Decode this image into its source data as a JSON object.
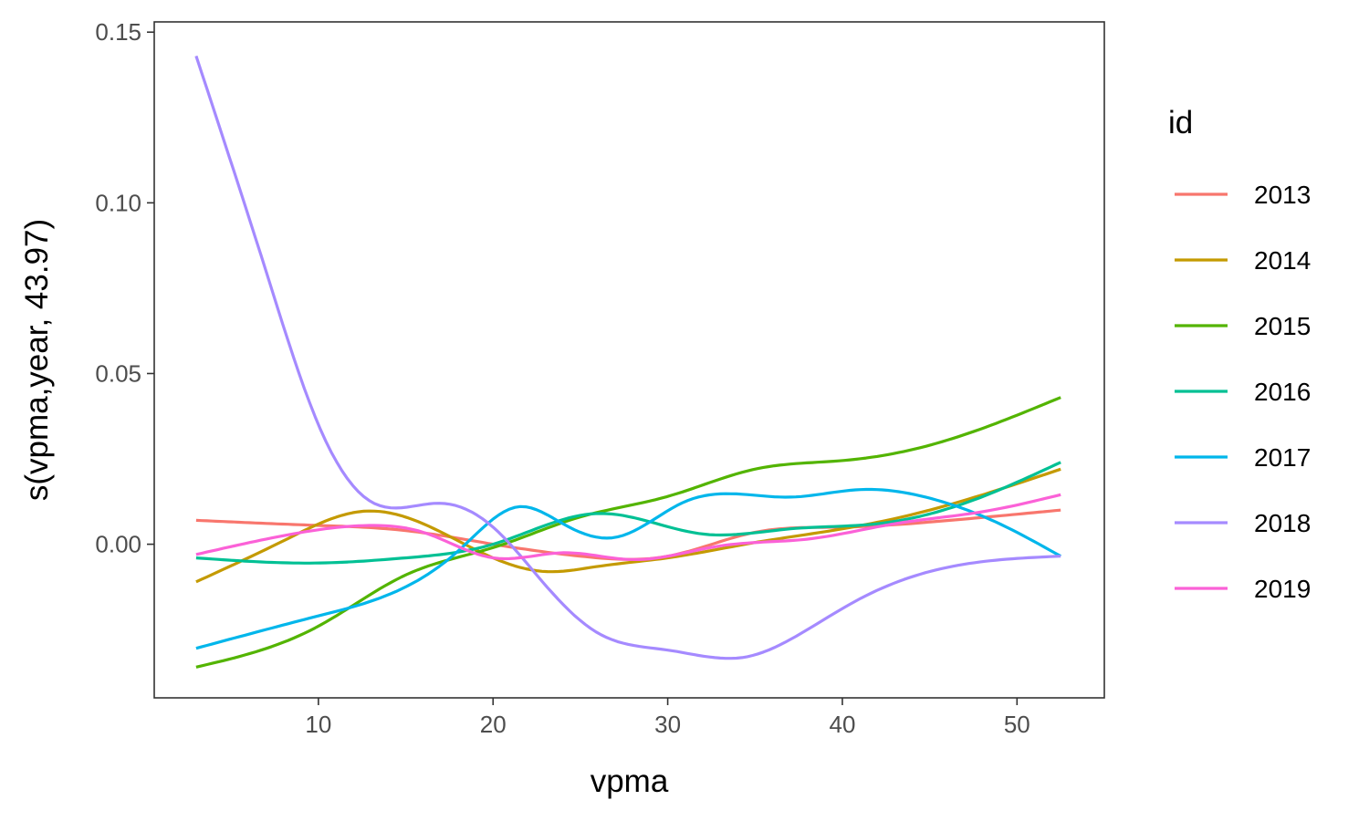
{
  "chart_data": {
    "type": "line",
    "title": "",
    "xlabel": "vpma",
    "ylabel": "s(vpma,year, 43.97)",
    "xlim": [
      0.6,
      55.0
    ],
    "ylim": [
      -0.045,
      0.153
    ],
    "x_ticks": [
      10,
      20,
      30,
      40,
      50
    ],
    "y_ticks": [
      0.0,
      0.05,
      0.1,
      0.15
    ],
    "y_tick_labels": [
      "0.00",
      "0.05",
      "0.10",
      "0.15"
    ],
    "grid": false,
    "legend": {
      "title": "id",
      "position": "right"
    },
    "series": [
      {
        "name": "2013",
        "color": "#F8766D",
        "x": [
          3,
          10,
          15,
          20,
          25,
          30,
          35,
          40,
          45,
          52.5
        ],
        "y": [
          0.007,
          0.0055,
          0.004,
          0.0,
          -0.0035,
          -0.0035,
          0.0035,
          0.005,
          0.0065,
          0.01
        ]
      },
      {
        "name": "2014",
        "color": "#C49A00",
        "x": [
          3,
          8,
          12.7,
          16,
          20,
          23,
          26,
          30,
          35,
          40,
          45,
          52.5
        ],
        "y": [
          -0.011,
          0.001,
          0.0097,
          0.006,
          -0.004,
          -0.008,
          -0.0065,
          -0.004,
          0.0005,
          0.0045,
          0.01,
          0.022
        ]
      },
      {
        "name": "2015",
        "color": "#53B400",
        "x": [
          3,
          10,
          15,
          20,
          25,
          30,
          35,
          40,
          45,
          52.5
        ],
        "y": [
          -0.036,
          -0.024,
          -0.009,
          -0.001,
          0.008,
          0.014,
          0.022,
          0.0245,
          0.029,
          0.043
        ]
      },
      {
        "name": "2016",
        "color": "#00C094",
        "x": [
          3,
          10,
          15,
          20,
          26,
          32,
          37,
          42,
          47,
          52.5
        ],
        "y": [
          -0.004,
          -0.0055,
          -0.004,
          0.0,
          0.009,
          0.003,
          0.0045,
          0.006,
          0.012,
          0.024
        ]
      },
      {
        "name": "2017",
        "color": "#00B6EB",
        "x": [
          3,
          10,
          15,
          18,
          21.5,
          24,
          27,
          31,
          37,
          41,
          45,
          49,
          52.5
        ],
        "y": [
          -0.0305,
          -0.021,
          -0.0125,
          -0.002,
          0.011,
          0.006,
          0.002,
          0.0125,
          0.0138,
          0.016,
          0.0135,
          0.006,
          -0.0035
        ]
      },
      {
        "name": "2018",
        "color": "#A58AFF",
        "x": [
          3,
          7,
          10,
          13,
          17,
          20,
          23,
          26,
          30,
          34.5,
          38,
          41,
          45,
          52.5
        ],
        "y": [
          0.143,
          0.08,
          0.035,
          0.0125,
          0.012,
          0.005,
          -0.012,
          -0.026,
          -0.031,
          -0.033,
          -0.025,
          -0.016,
          -0.008,
          -0.0035
        ]
      },
      {
        "name": "2019",
        "color": "#FB61D7",
        "x": [
          3,
          8,
          13,
          16,
          20,
          24,
          28,
          33,
          38,
          43,
          48,
          52.5
        ],
        "y": [
          -0.003,
          0.0025,
          0.0055,
          0.0035,
          -0.004,
          -0.0025,
          -0.0045,
          -0.0005,
          0.0015,
          0.006,
          0.0095,
          0.0145
        ]
      }
    ]
  }
}
